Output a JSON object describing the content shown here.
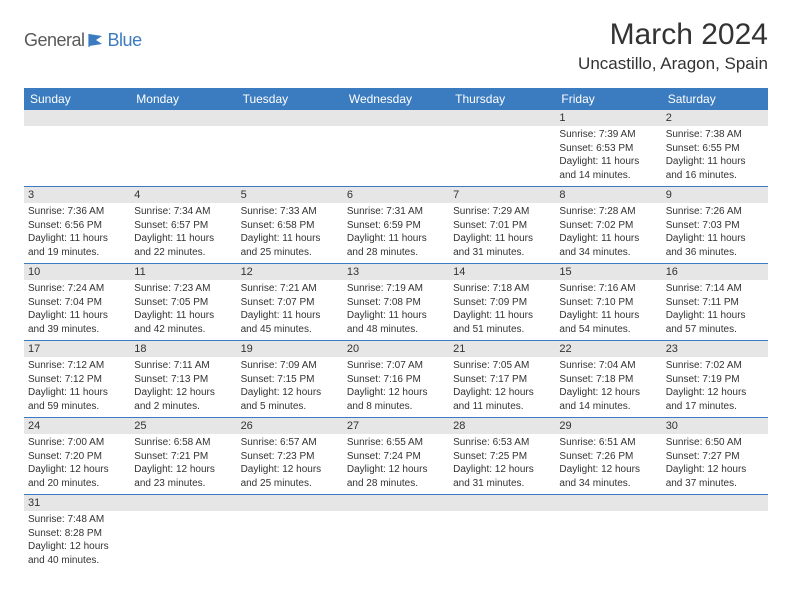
{
  "logo": {
    "general": "General",
    "blue": "Blue"
  },
  "title": "March 2024",
  "location": "Uncastillo, Aragon, Spain",
  "colors": {
    "header_bg": "#3b7bbf",
    "daynum_bg": "#e6e6e6",
    "border": "#3b7bbf",
    "text": "#333333"
  },
  "dayHeaders": [
    "Sunday",
    "Monday",
    "Tuesday",
    "Wednesday",
    "Thursday",
    "Friday",
    "Saturday"
  ],
  "weeks": [
    [
      null,
      null,
      null,
      null,
      null,
      {
        "n": "1",
        "sr": "Sunrise: 7:39 AM",
        "ss": "Sunset: 6:53 PM",
        "dl": "Daylight: 11 hours and 14 minutes."
      },
      {
        "n": "2",
        "sr": "Sunrise: 7:38 AM",
        "ss": "Sunset: 6:55 PM",
        "dl": "Daylight: 11 hours and 16 minutes."
      }
    ],
    [
      {
        "n": "3",
        "sr": "Sunrise: 7:36 AM",
        "ss": "Sunset: 6:56 PM",
        "dl": "Daylight: 11 hours and 19 minutes."
      },
      {
        "n": "4",
        "sr": "Sunrise: 7:34 AM",
        "ss": "Sunset: 6:57 PM",
        "dl": "Daylight: 11 hours and 22 minutes."
      },
      {
        "n": "5",
        "sr": "Sunrise: 7:33 AM",
        "ss": "Sunset: 6:58 PM",
        "dl": "Daylight: 11 hours and 25 minutes."
      },
      {
        "n": "6",
        "sr": "Sunrise: 7:31 AM",
        "ss": "Sunset: 6:59 PM",
        "dl": "Daylight: 11 hours and 28 minutes."
      },
      {
        "n": "7",
        "sr": "Sunrise: 7:29 AM",
        "ss": "Sunset: 7:01 PM",
        "dl": "Daylight: 11 hours and 31 minutes."
      },
      {
        "n": "8",
        "sr": "Sunrise: 7:28 AM",
        "ss": "Sunset: 7:02 PM",
        "dl": "Daylight: 11 hours and 34 minutes."
      },
      {
        "n": "9",
        "sr": "Sunrise: 7:26 AM",
        "ss": "Sunset: 7:03 PM",
        "dl": "Daylight: 11 hours and 36 minutes."
      }
    ],
    [
      {
        "n": "10",
        "sr": "Sunrise: 7:24 AM",
        "ss": "Sunset: 7:04 PM",
        "dl": "Daylight: 11 hours and 39 minutes."
      },
      {
        "n": "11",
        "sr": "Sunrise: 7:23 AM",
        "ss": "Sunset: 7:05 PM",
        "dl": "Daylight: 11 hours and 42 minutes."
      },
      {
        "n": "12",
        "sr": "Sunrise: 7:21 AM",
        "ss": "Sunset: 7:07 PM",
        "dl": "Daylight: 11 hours and 45 minutes."
      },
      {
        "n": "13",
        "sr": "Sunrise: 7:19 AM",
        "ss": "Sunset: 7:08 PM",
        "dl": "Daylight: 11 hours and 48 minutes."
      },
      {
        "n": "14",
        "sr": "Sunrise: 7:18 AM",
        "ss": "Sunset: 7:09 PM",
        "dl": "Daylight: 11 hours and 51 minutes."
      },
      {
        "n": "15",
        "sr": "Sunrise: 7:16 AM",
        "ss": "Sunset: 7:10 PM",
        "dl": "Daylight: 11 hours and 54 minutes."
      },
      {
        "n": "16",
        "sr": "Sunrise: 7:14 AM",
        "ss": "Sunset: 7:11 PM",
        "dl": "Daylight: 11 hours and 57 minutes."
      }
    ],
    [
      {
        "n": "17",
        "sr": "Sunrise: 7:12 AM",
        "ss": "Sunset: 7:12 PM",
        "dl": "Daylight: 11 hours and 59 minutes."
      },
      {
        "n": "18",
        "sr": "Sunrise: 7:11 AM",
        "ss": "Sunset: 7:13 PM",
        "dl": "Daylight: 12 hours and 2 minutes."
      },
      {
        "n": "19",
        "sr": "Sunrise: 7:09 AM",
        "ss": "Sunset: 7:15 PM",
        "dl": "Daylight: 12 hours and 5 minutes."
      },
      {
        "n": "20",
        "sr": "Sunrise: 7:07 AM",
        "ss": "Sunset: 7:16 PM",
        "dl": "Daylight: 12 hours and 8 minutes."
      },
      {
        "n": "21",
        "sr": "Sunrise: 7:05 AM",
        "ss": "Sunset: 7:17 PM",
        "dl": "Daylight: 12 hours and 11 minutes."
      },
      {
        "n": "22",
        "sr": "Sunrise: 7:04 AM",
        "ss": "Sunset: 7:18 PM",
        "dl": "Daylight: 12 hours and 14 minutes."
      },
      {
        "n": "23",
        "sr": "Sunrise: 7:02 AM",
        "ss": "Sunset: 7:19 PM",
        "dl": "Daylight: 12 hours and 17 minutes."
      }
    ],
    [
      {
        "n": "24",
        "sr": "Sunrise: 7:00 AM",
        "ss": "Sunset: 7:20 PM",
        "dl": "Daylight: 12 hours and 20 minutes."
      },
      {
        "n": "25",
        "sr": "Sunrise: 6:58 AM",
        "ss": "Sunset: 7:21 PM",
        "dl": "Daylight: 12 hours and 23 minutes."
      },
      {
        "n": "26",
        "sr": "Sunrise: 6:57 AM",
        "ss": "Sunset: 7:23 PM",
        "dl": "Daylight: 12 hours and 25 minutes."
      },
      {
        "n": "27",
        "sr": "Sunrise: 6:55 AM",
        "ss": "Sunset: 7:24 PM",
        "dl": "Daylight: 12 hours and 28 minutes."
      },
      {
        "n": "28",
        "sr": "Sunrise: 6:53 AM",
        "ss": "Sunset: 7:25 PM",
        "dl": "Daylight: 12 hours and 31 minutes."
      },
      {
        "n": "29",
        "sr": "Sunrise: 6:51 AM",
        "ss": "Sunset: 7:26 PM",
        "dl": "Daylight: 12 hours and 34 minutes."
      },
      {
        "n": "30",
        "sr": "Sunrise: 6:50 AM",
        "ss": "Sunset: 7:27 PM",
        "dl": "Daylight: 12 hours and 37 minutes."
      }
    ],
    [
      {
        "n": "31",
        "sr": "Sunrise: 7:48 AM",
        "ss": "Sunset: 8:28 PM",
        "dl": "Daylight: 12 hours and 40 minutes."
      },
      null,
      null,
      null,
      null,
      null,
      null
    ]
  ]
}
